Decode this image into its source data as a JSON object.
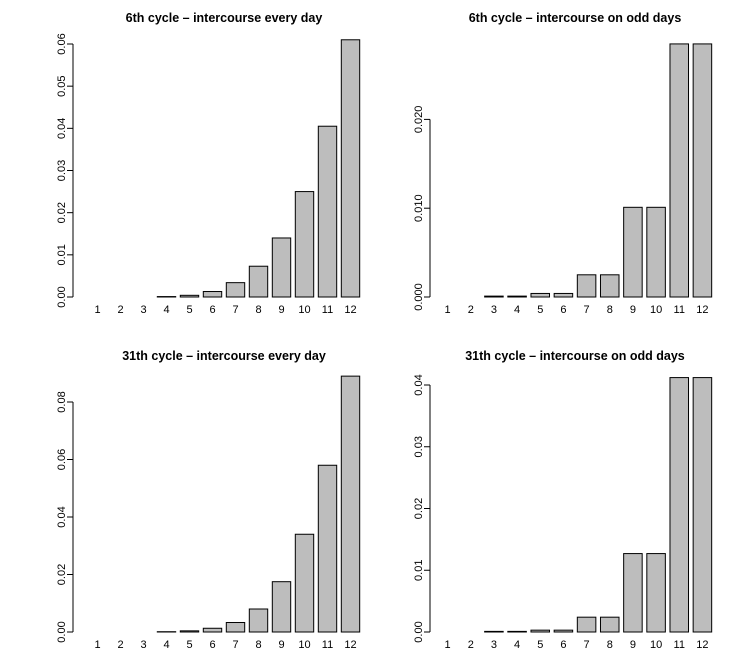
{
  "chart_data": [
    {
      "type": "bar",
      "title": "6th cycle – intercourse every day",
      "categories": [
        "1",
        "2",
        "3",
        "4",
        "5",
        "6",
        "7",
        "8",
        "9",
        "10",
        "11",
        "12"
      ],
      "values": [
        0.0,
        0.0,
        0.0,
        0.0001,
        0.0004,
        0.0013,
        0.0034,
        0.0073,
        0.014,
        0.025,
        0.0405,
        0.061
      ],
      "yticks": [
        "0.00",
        "0.01",
        "0.02",
        "0.03",
        "0.04",
        "0.05",
        "0.06"
      ],
      "ylim": [
        0,
        0.06
      ],
      "xlabel": "",
      "ylabel": ""
    },
    {
      "type": "bar",
      "title": "6th cycle – intercourse on odd days",
      "categories": [
        "1",
        "2",
        "3",
        "4",
        "5",
        "6",
        "7",
        "8",
        "9",
        "10",
        "11",
        "12"
      ],
      "values": [
        0.0,
        0.0,
        0.0001,
        0.0001,
        0.0004,
        0.0004,
        0.0025,
        0.0025,
        0.0101,
        0.0101,
        0.0285,
        0.0285
      ],
      "yticks": [
        "0.000",
        "0.010",
        "0.020"
      ],
      "ylim": [
        0,
        0.025
      ],
      "xlabel": "",
      "ylabel": ""
    },
    {
      "type": "bar",
      "title": "31th cycle – intercourse every day",
      "categories": [
        "1",
        "2",
        "3",
        "4",
        "5",
        "6",
        "7",
        "8",
        "9",
        "10",
        "11",
        "12"
      ],
      "values": [
        0.0,
        0.0,
        0.0,
        0.0001,
        0.0004,
        0.0013,
        0.0033,
        0.008,
        0.0175,
        0.034,
        0.058,
        0.089
      ],
      "yticks": [
        "0.00",
        "0.02",
        "0.04",
        "0.06",
        "0.08"
      ],
      "ylim": [
        0,
        0.08
      ],
      "xlabel": "",
      "ylabel": ""
    },
    {
      "type": "bar",
      "title": "31th cycle – intercourse on odd days",
      "categories": [
        "1",
        "2",
        "3",
        "4",
        "5",
        "6",
        "7",
        "8",
        "9",
        "10",
        "11",
        "12"
      ],
      "values": [
        0.0,
        0.0,
        0.0001,
        0.0001,
        0.0003,
        0.0003,
        0.0024,
        0.0024,
        0.0127,
        0.0127,
        0.0412,
        0.0412
      ],
      "yticks": [
        "0.00",
        "0.01",
        "0.02",
        "0.03",
        "0.04"
      ],
      "ylim": [
        0,
        0.04
      ],
      "xlabel": "",
      "ylabel": ""
    }
  ],
  "colors": {
    "bar_fill": "#bdbdbd",
    "bar_stroke": "#000000"
  }
}
